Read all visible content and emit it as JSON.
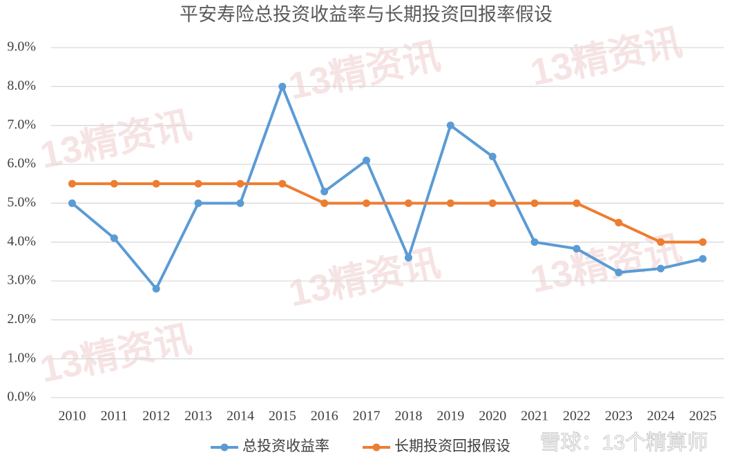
{
  "chart_data": {
    "type": "line",
    "title": "平安寿险总投资收益率与长期投资回报率假设",
    "categories": [
      "2010",
      "2011",
      "2012",
      "2013",
      "2014",
      "2015",
      "2016",
      "2017",
      "2018",
      "2019",
      "2020",
      "2021",
      "2022",
      "2023",
      "2024",
      "2025"
    ],
    "series": [
      {
        "name": "总投资收益率",
        "color": "#5b9bd5",
        "values": [
          5.0,
          4.1,
          2.8,
          5.0,
          5.0,
          8.0,
          5.3,
          6.1,
          3.6,
          7.0,
          6.2,
          4.0,
          3.83,
          3.22,
          3.32,
          3.57
        ]
      },
      {
        "name": "长期投资回报假设",
        "color": "#ed7d31",
        "values": [
          5.5,
          5.5,
          5.5,
          5.5,
          5.5,
          5.5,
          5.0,
          5.0,
          5.0,
          5.0,
          5.0,
          5.0,
          5.0,
          4.5,
          4.0,
          4.0
        ]
      }
    ],
    "ylim": [
      0,
      9
    ],
    "yticks": [
      {
        "value": 0,
        "label": "0.0%"
      },
      {
        "value": 1,
        "label": "1.0%"
      },
      {
        "value": 2,
        "label": "2.0%"
      },
      {
        "value": 3,
        "label": "3.0%"
      },
      {
        "value": 4,
        "label": "4.0%"
      },
      {
        "value": 5,
        "label": "5.0%"
      },
      {
        "value": 6,
        "label": "6.0%"
      },
      {
        "value": 7,
        "label": "7.0%"
      },
      {
        "value": 8,
        "label": "8.0%"
      },
      {
        "value": 9,
        "label": "9.0%"
      }
    ],
    "grid": true,
    "legend": "bottom",
    "watermarks": [
      "13精资讯",
      "雪球：13个精算师"
    ]
  }
}
